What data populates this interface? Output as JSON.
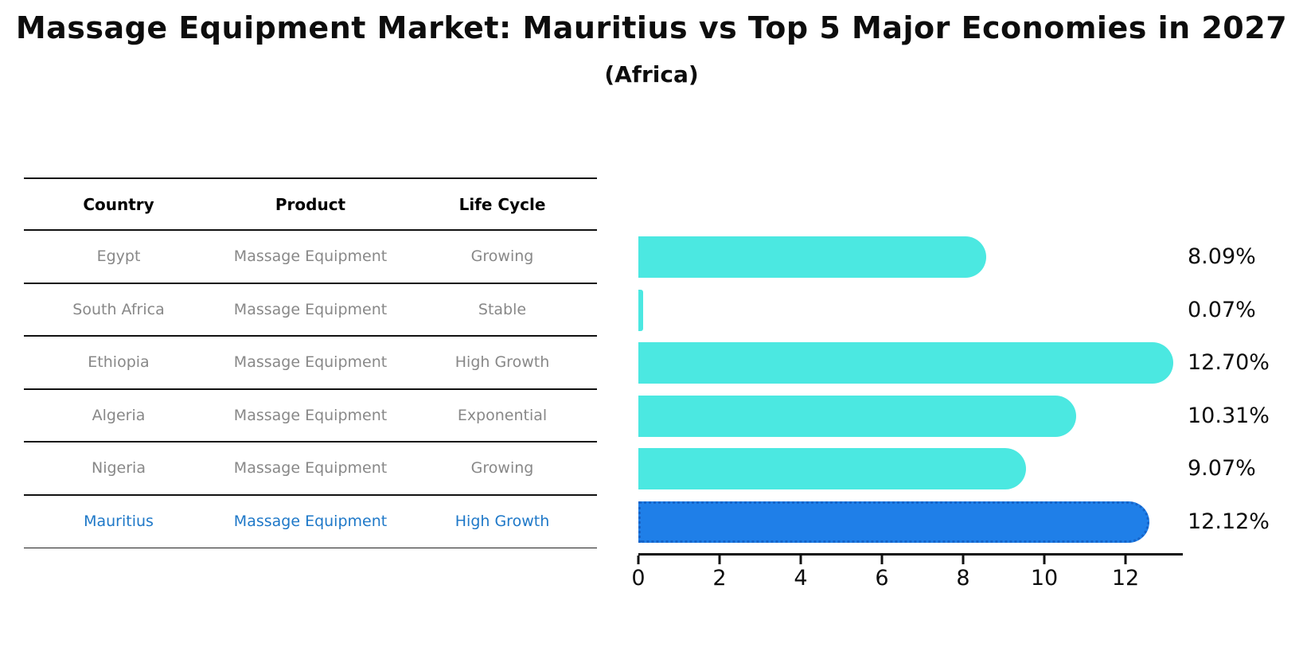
{
  "header": {
    "title": "Massage Equipment Market: Mauritius vs Top 5 Major Economies in 2027",
    "subtitle": "(Africa)"
  },
  "table": {
    "columns": [
      "Country",
      "Product",
      "Life Cycle"
    ],
    "rows": [
      {
        "country": "Egypt",
        "product": "Massage Equipment",
        "life_cycle": "Growing",
        "highlight": false
      },
      {
        "country": "South Africa",
        "product": "Massage Equipment",
        "life_cycle": "Stable",
        "highlight": false
      },
      {
        "country": "Ethiopia",
        "product": "Massage Equipment",
        "life_cycle": "High Growth",
        "highlight": false
      },
      {
        "country": "Algeria",
        "product": "Massage Equipment",
        "life_cycle": "Exponential",
        "highlight": false
      },
      {
        "country": "Nigeria",
        "product": "Massage Equipment",
        "life_cycle": "Growing",
        "highlight": false
      },
      {
        "country": "Mauritius",
        "product": "Massage Equipment",
        "life_cycle": "High Growth",
        "highlight": true
      }
    ]
  },
  "chart_data": {
    "type": "bar",
    "orientation": "horizontal",
    "title": "Massage Equipment Market: Mauritius vs Top 5 Major Economies in 2027",
    "subtitle": "(Africa)",
    "categories": [
      "Egypt",
      "South Africa",
      "Ethiopia",
      "Algeria",
      "Nigeria",
      "Mauritius"
    ],
    "values": [
      8.09,
      0.07,
      12.7,
      10.31,
      9.07,
      12.12
    ],
    "value_labels": [
      "8.09%",
      "0.07%",
      "12.70%",
      "10.31%",
      "9.07%",
      "12.12%"
    ],
    "xlabel": "",
    "ylabel": "",
    "xlim": [
      0,
      13.4
    ],
    "x_ticks": [
      0,
      2,
      4,
      6,
      8,
      10,
      12
    ],
    "grid": false,
    "legend": null,
    "highlight_category": "Mauritius",
    "colors": {
      "bar": "#4be8e1",
      "highlight_bar": "#1f7fe8",
      "highlight_border": "#1563c8",
      "row_text": "#888888",
      "highlight_text": "#1e78c8",
      "label_text": "#0d0d0d"
    }
  }
}
